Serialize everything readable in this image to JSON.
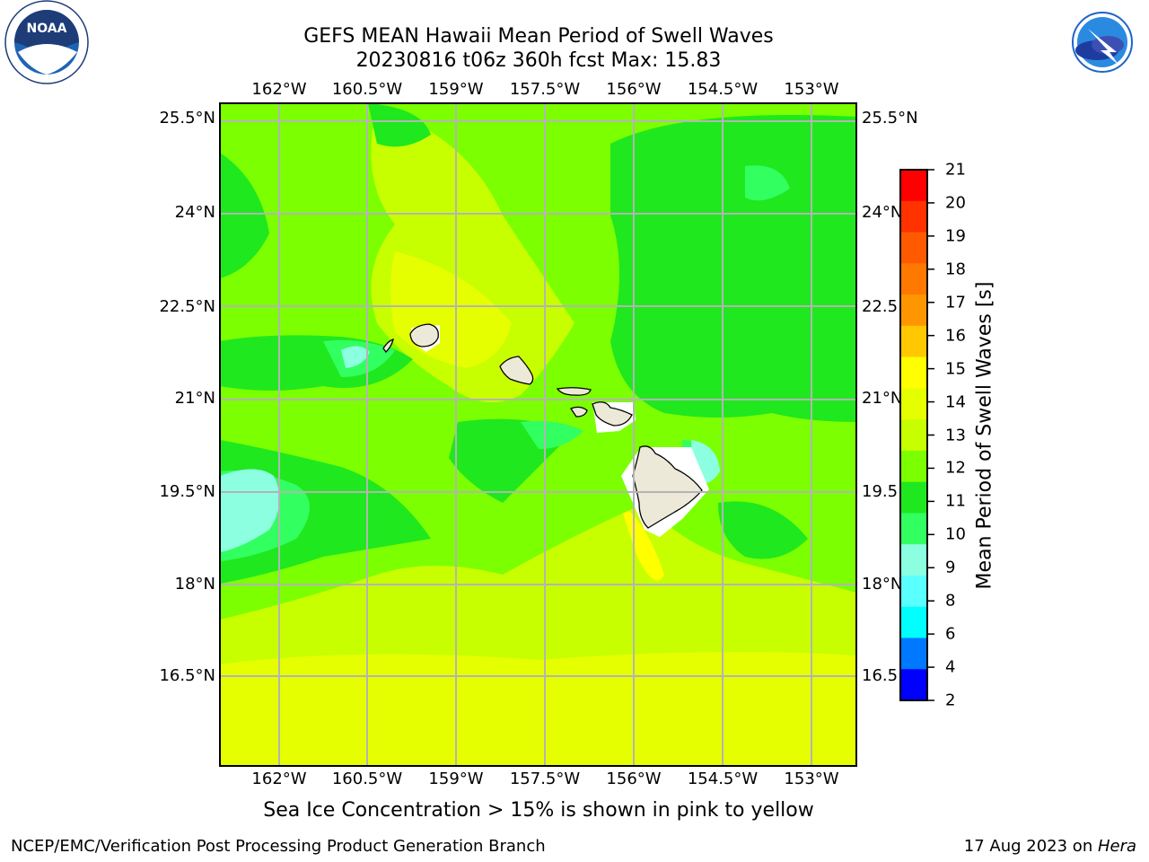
{
  "header": {
    "title_line1": "GEFS MEAN Hawaii Mean Period of Swell Waves",
    "title_line2": "20230816 t06z 360h fcst   Max: 15.83"
  },
  "logos": {
    "noaa_text": "NOAA",
    "noaa_ring_text": "NATIONAL OCEANIC AND ATMOSPHERIC ADMINISTRATION · U.S. DEPARTMENT OF COMMERCE",
    "nws_ring_text": "NATIONAL WEATHER SERVICE"
  },
  "map": {
    "lon_labels": [
      "162°W",
      "160.5°W",
      "159°W",
      "157.5°W",
      "156°W",
      "154.5°W",
      "153°W"
    ],
    "lat_labels": [
      "25.5°N",
      "24°N",
      "22.5°N",
      "21°N",
      "19.5°N",
      "18°N",
      "16.5°N"
    ],
    "lat_labels_right": [
      "25.5°N",
      "24°N",
      "22.5",
      "21°N",
      "19.5",
      "18°N",
      "16.5"
    ],
    "field": "Mean Period of Swell Waves",
    "colors": {
      "c9_10": "#8cffe0",
      "c10_11": "#32ff60",
      "c11_12": "#1fe81f",
      "c12_13": "#7cff00",
      "c13_14": "#c8ff00",
      "c14_15": "#e6ff00",
      "c15_16": "#ffff00",
      "land": "#ede9d9",
      "grid": "#b4b4b4"
    }
  },
  "colorbar": {
    "label": "Mean Period of Swell Waves [s]",
    "ticks": [
      "21",
      "20",
      "19",
      "18",
      "17",
      "16",
      "15",
      "14",
      "13",
      "12",
      "11",
      "10",
      "9",
      "8",
      "6",
      "4",
      "2"
    ],
    "bands": [
      "#ff0000",
      "#ff3200",
      "#ff5a00",
      "#ff7800",
      "#ff9600",
      "#ffc800",
      "#ffff00",
      "#e6ff00",
      "#c8ff00",
      "#7cff00",
      "#1fe81f",
      "#32ff60",
      "#8cffe0",
      "#5affff",
      "#00ffff",
      "#0078ff",
      "#0000ff"
    ]
  },
  "footnote": "Sea Ice Concentration > 15% is shown in pink to yellow",
  "footer": {
    "left": "NCEP/EMC/Verification Post Processing Product Generation Branch",
    "right_prefix": "17 Aug 2023 on ",
    "right_host": "Hera"
  }
}
